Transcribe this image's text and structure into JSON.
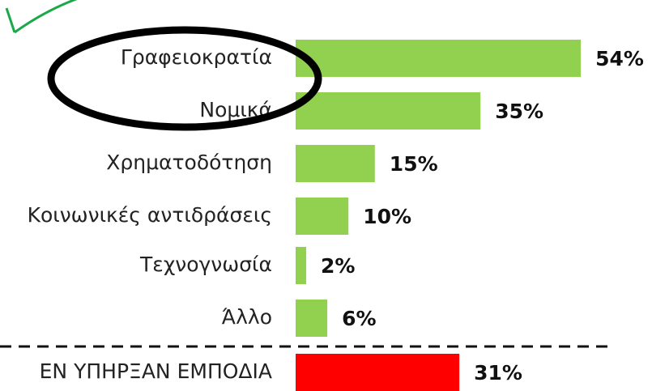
{
  "chart_data": {
    "type": "bar",
    "orientation": "horizontal",
    "categories": [
      "Γραφειοκρατία",
      "Νομικά",
      "Χρηματοδότηση",
      "Κοινωνικές αντιδράσεις",
      "Τεχνογνωσία",
      "Άλλο",
      "ΕΝ ΥΠΗΡΞΑΝ ΕΜΠΟΔΙΑ"
    ],
    "values": [
      54,
      35,
      15,
      10,
      2,
      6,
      31
    ],
    "value_labels": [
      "54%",
      "35%",
      "15%",
      "10%",
      "2%",
      "6%",
      "31%"
    ],
    "colors": [
      "#92d050",
      "#92d050",
      "#92d050",
      "#92d050",
      "#92d050",
      "#92d050",
      "#ff0000"
    ]
  }
}
